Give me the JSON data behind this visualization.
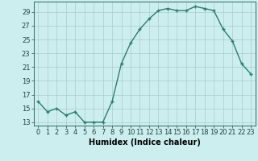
{
  "x": [
    0,
    1,
    2,
    3,
    4,
    5,
    6,
    7,
    8,
    9,
    10,
    11,
    12,
    13,
    14,
    15,
    16,
    17,
    18,
    19,
    20,
    21,
    22,
    23
  ],
  "y": [
    16.0,
    14.5,
    15.0,
    14.0,
    14.5,
    13.0,
    13.0,
    13.0,
    16.0,
    21.5,
    24.5,
    26.5,
    28.0,
    29.2,
    29.5,
    29.2,
    29.2,
    29.8,
    29.5,
    29.2,
    26.5,
    24.8,
    21.5,
    20.0
  ],
  "line_color": "#2d7d6e",
  "bg_color": "#cceeee",
  "grid_color": "#aacccc",
  "xlabel": "Humidex (Indice chaleur)",
  "ylim": [
    12.5,
    30.5
  ],
  "yticks": [
    13,
    15,
    17,
    19,
    21,
    23,
    25,
    27,
    29
  ],
  "xticks": [
    0,
    1,
    2,
    3,
    4,
    5,
    6,
    7,
    8,
    9,
    10,
    11,
    12,
    13,
    14,
    15,
    16,
    17,
    18,
    19,
    20,
    21,
    22,
    23
  ],
  "xlabel_fontsize": 7.0,
  "tick_fontsize": 6.0,
  "marker_size": 2.5,
  "line_width": 1.0
}
